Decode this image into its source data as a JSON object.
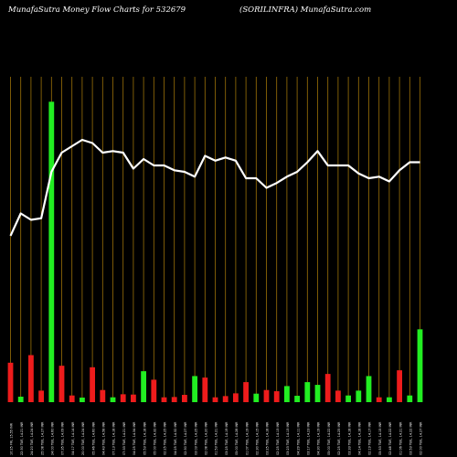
{
  "header": {
    "title_left": "MunafaSutra  Money Flow  Charts for 532679",
    "title_right": "(SORILINFRA) MunafaSutra.com"
  },
  "colors": {
    "background": "#000000",
    "grid": "#b8860b",
    "up_bar": "#22ee22",
    "down_bar": "#ee1c1c",
    "line": "#ffffff",
    "text": "#ffffff"
  },
  "chart_data": {
    "type": "bar",
    "title": "MunafaSutra  Money Flow  Charts for 532679",
    "subtitle": "(SORILINFRA) MunafaSutra.com",
    "y_axis_visible": false,
    "grid": "vertical lines only",
    "categories": [
      "10:25 FRI, 15.55 INR",
      "22:30 TUE, 14.21 INR",
      "24:20 TUE, 14.24 INR",
      "25:08 TUE, 14.27 INR",
      "24:00 TUE, 14.60 INR",
      "07:35 TUE, 14.09 INR",
      "04:17 TUE, 14.14 INR",
      "20:00 TUE, 14.24 INR",
      "05:46 TUE, 14.60 INR",
      "04:43 TUE, 14.58 INR",
      "07:13 TUE, 14.18 INR",
      "07:33 TUE, 14.21 INR",
      "04:25 TUE, 14.34 INR",
      "05:53 TUE, 14.18 INR",
      "05:00 TUE, 14.32 INR",
      "02:25 TUE, 14.25 INR",
      "04:25 TUE, 14.32 INR",
      "02:30 TUE, 14.27 INR",
      "03:03 TUE, 14.25 INR",
      "02:08 TUE, 14.20 INR",
      "01:53 TUE, 14.21 INR",
      "03:25 TUE, 14.19 INR",
      "05:00 TUE, 14.28 INR",
      "01:07 TUE, 14.19 INR",
      "02:30 TUE, 14.15 INR",
      "03:25 TUE, 14.18 INR",
      "02:25 TUE, 14.13 INR",
      "03:23 TUE, 14.13 INR",
      "04:29 TUE, 14.11 INR",
      "03:17 TUE, 14.23 INR",
      "04:30 TUE, 14.19 INR",
      "05:00 TUE, 14.22 INR",
      "02:25 TUE, 14.25 INR",
      "03:33 TUE, 14.18 INR",
      "04:14 TUE, 14.18 INR",
      "02:19 TUE, 14.17 INR",
      "05:53 TUE, 14.15 INR",
      "02:48 TUE, 14.22 INR",
      "01:06 TUE, 14.21 INR",
      "03:53 TUE, 14.22 INR",
      "02:00 TUE, 14.27 INR"
    ],
    "bar_colors": [
      "red",
      "green",
      "red",
      "red",
      "green",
      "red",
      "red",
      "green",
      "red",
      "red",
      "green",
      "red",
      "red",
      "green",
      "red",
      "red",
      "red",
      "red",
      "green",
      "red",
      "red",
      "red",
      "red",
      "red",
      "green",
      "red",
      "red",
      "green",
      "green",
      "green",
      "green",
      "red",
      "red",
      "green",
      "green",
      "green",
      "red",
      "green",
      "red",
      "green",
      "green"
    ],
    "series": [
      {
        "type": "bar",
        "values": [
          13,
          1.8,
          15.5,
          3.8,
          99,
          12,
          2.2,
          1.5,
          11.5,
          4,
          1.6,
          2.6,
          2.5,
          10.2,
          7.4,
          1.6,
          1.7,
          2.4,
          8.6,
          8.1,
          1.6,
          2,
          2.9,
          6.6,
          2.8,
          4,
          3.6,
          5.3,
          2.1,
          6.6,
          5.7,
          9.3,
          3.8,
          2.2,
          3.8,
          8.6,
          1.6,
          1.6,
          10.5,
          2.2,
          24
        ]
      },
      {
        "type": "line",
        "values": [
          52,
          59,
          57,
          57.5,
          72,
          78,
          80,
          82,
          81,
          78,
          78.5,
          78,
          73,
          76,
          74,
          74,
          72.5,
          72,
          70.5,
          77,
          75.5,
          76.5,
          75.5,
          70,
          70,
          67,
          68.5,
          70.5,
          72,
          75,
          78.5,
          74,
          74,
          74,
          71.5,
          70,
          70.5,
          69,
          72.5,
          75,
          75
        ]
      }
    ],
    "ylim": [
      0,
      100
    ]
  }
}
